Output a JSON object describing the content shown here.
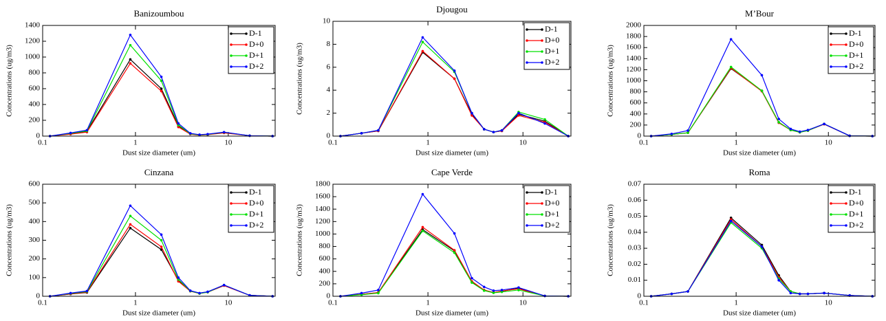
{
  "chart_data": [
    {
      "type": "line",
      "title": "Banizoumbou",
      "xlabel": "Dust size diameter (um)",
      "ylabel": "Concentrations (ug/m3)",
      "log_x": true,
      "legend": "upper-right",
      "x": [
        0.12,
        0.2,
        0.3,
        0.88,
        1.9,
        2.9,
        3.9,
        4.9,
        6,
        9,
        17,
        30
      ],
      "xlim": [
        0.1,
        32
      ],
      "xticks": [
        0.1,
        1,
        10
      ],
      "ylim": [
        0,
        1400
      ],
      "yticks": [
        0,
        200,
        400,
        600,
        800,
        1000,
        1200,
        1400
      ],
      "series": [
        {
          "name": "D-1",
          "color": "#000000",
          "values": [
            0,
            30,
            60,
            970,
            600,
            130,
            30,
            15,
            20,
            45,
            5,
            0
          ]
        },
        {
          "name": "D+0",
          "color": "#ff0000",
          "values": [
            0,
            25,
            50,
            920,
            570,
            115,
            25,
            12,
            18,
            40,
            5,
            0
          ]
        },
        {
          "name": "D+1",
          "color": "#00e000",
          "values": [
            0,
            35,
            65,
            1150,
            700,
            140,
            30,
            15,
            22,
            48,
            5,
            0
          ]
        },
        {
          "name": "D+2",
          "color": "#0000ff",
          "values": [
            0,
            40,
            75,
            1280,
            750,
            160,
            35,
            18,
            25,
            50,
            5,
            0
          ]
        }
      ]
    },
    {
      "type": "line",
      "title": "Djougou",
      "xlabel": "Dust size diameter (um)",
      "ylabel": "Concentrations (ug/m3)",
      "log_x": true,
      "legend": "upper-right",
      "x": [
        0.12,
        0.2,
        0.3,
        0.88,
        1.9,
        2.9,
        3.9,
        4.9,
        6,
        9,
        17,
        30
      ],
      "xlim": [
        0.1,
        32
      ],
      "xticks": [
        0.1,
        1,
        10
      ],
      "ylim": [
        0,
        10
      ],
      "yticks": [
        0,
        2,
        4,
        6,
        8,
        10
      ],
      "series": [
        {
          "name": "D-1",
          "color": "#000000",
          "values": [
            0,
            0.25,
            0.45,
            7.3,
            5.0,
            1.9,
            0.6,
            0.35,
            0.45,
            1.9,
            1.3,
            0
          ]
        },
        {
          "name": "D+0",
          "color": "#ff0000",
          "values": [
            0,
            0.25,
            0.45,
            7.4,
            5.0,
            1.8,
            0.6,
            0.35,
            0.45,
            1.8,
            1.2,
            0
          ]
        },
        {
          "name": "D+1",
          "color": "#00e000",
          "values": [
            0,
            0.25,
            0.5,
            8.2,
            5.6,
            2.0,
            0.6,
            0.35,
            0.5,
            2.1,
            1.45,
            0
          ]
        },
        {
          "name": "D+2",
          "color": "#0000ff",
          "values": [
            0,
            0.25,
            0.5,
            8.6,
            5.7,
            2.0,
            0.6,
            0.35,
            0.5,
            2.0,
            1.1,
            0
          ]
        }
      ]
    },
    {
      "type": "line",
      "title": "M’Bour",
      "xlabel": "Dust size diameter (um)",
      "ylabel": "Concentrations (ug/m3)",
      "log_x": true,
      "legend": "upper-right",
      "x": [
        0.12,
        0.2,
        0.3,
        0.88,
        1.9,
        2.9,
        3.9,
        4.9,
        6,
        9,
        17,
        30
      ],
      "xlim": [
        0.1,
        32
      ],
      "xticks": [
        0.1,
        1,
        10
      ],
      "ylim": [
        0,
        2000
      ],
      "yticks": [
        0,
        200,
        400,
        600,
        800,
        1000,
        1200,
        1400,
        1600,
        1800,
        2000
      ],
      "series": [
        {
          "name": "D-1",
          "color": "#000000",
          "values": [
            0,
            30,
            60,
            1220,
            820,
            250,
            110,
            70,
            100,
            220,
            5,
            0
          ]
        },
        {
          "name": "D+0",
          "color": "#ff0000",
          "values": [
            0,
            30,
            60,
            1230,
            810,
            240,
            110,
            70,
            100,
            215,
            5,
            0
          ]
        },
        {
          "name": "D+1",
          "color": "#00e000",
          "values": [
            0,
            30,
            60,
            1250,
            820,
            250,
            110,
            70,
            100,
            220,
            5,
            0
          ]
        },
        {
          "name": "D+2",
          "color": "#0000ff",
          "values": [
            0,
            40,
            100,
            1750,
            1100,
            310,
            130,
            80,
            110,
            220,
            5,
            0
          ]
        }
      ]
    },
    {
      "type": "line",
      "title": "Cinzana",
      "xlabel": "Dust size diameter (um)",
      "ylabel": "Concentrations (ug/m3)",
      "log_x": true,
      "legend": "upper-right",
      "x": [
        0.12,
        0.2,
        0.3,
        0.88,
        1.9,
        2.9,
        3.9,
        4.9,
        6,
        9,
        17,
        30
      ],
      "xlim": [
        0.1,
        32
      ],
      "xticks": [
        0.1,
        1,
        10
      ],
      "ylim": [
        0,
        600
      ],
      "yticks": [
        0,
        100,
        200,
        300,
        400,
        500,
        600
      ],
      "series": [
        {
          "name": "D-1",
          "color": "#000000",
          "values": [
            0,
            12,
            20,
            365,
            250,
            85,
            28,
            15,
            22,
            58,
            5,
            0
          ]
        },
        {
          "name": "D+0",
          "color": "#ff0000",
          "values": [
            0,
            13,
            22,
            385,
            265,
            80,
            27,
            15,
            22,
            57,
            5,
            0
          ]
        },
        {
          "name": "D+1",
          "color": "#00e000",
          "values": [
            0,
            15,
            25,
            430,
            300,
            90,
            28,
            15,
            22,
            60,
            5,
            0
          ]
        },
        {
          "name": "D+2",
          "color": "#0000ff",
          "values": [
            0,
            17,
            28,
            485,
            330,
            100,
            30,
            17,
            24,
            60,
            5,
            0
          ]
        }
      ]
    },
    {
      "type": "line",
      "title": "Cape Verde",
      "xlabel": "Dust size diameter (um)",
      "ylabel": "Concentrations (ug/m3)",
      "log_x": true,
      "legend": "upper-right",
      "x": [
        0.12,
        0.2,
        0.3,
        0.88,
        1.9,
        2.9,
        3.9,
        4.9,
        6,
        9,
        17,
        30
      ],
      "xlim": [
        0.1,
        32
      ],
      "xticks": [
        0.1,
        1,
        10
      ],
      "ylim": [
        0,
        1800
      ],
      "yticks": [
        0,
        200,
        400,
        600,
        800,
        1000,
        1200,
        1400,
        1600,
        1800
      ],
      "series": [
        {
          "name": "D-1",
          "color": "#000000",
          "values": [
            0,
            30,
            60,
            1070,
            730,
            230,
            100,
            60,
            80,
            130,
            5,
            0
          ]
        },
        {
          "name": "D+0",
          "color": "#ff0000",
          "values": [
            0,
            30,
            60,
            1110,
            740,
            240,
            100,
            60,
            85,
            120,
            5,
            0
          ]
        },
        {
          "name": "D+1",
          "color": "#00e000",
          "values": [
            0,
            25,
            50,
            1050,
            700,
            220,
            90,
            55,
            70,
            100,
            5,
            0
          ]
        },
        {
          "name": "D+2",
          "color": "#0000ff",
          "values": [
            0,
            50,
            100,
            1640,
            1010,
            290,
            150,
            90,
            100,
            140,
            5,
            0
          ]
        }
      ]
    },
    {
      "type": "line",
      "title": "Roma",
      "xlabel": "Dust size diameter (um)",
      "ylabel": "Concentrations (ug/m3)",
      "log_x": true,
      "legend": "upper-right",
      "x": [
        0.12,
        0.2,
        0.3,
        0.88,
        1.9,
        2.9,
        3.9,
        4.9,
        6,
        9,
        17,
        30
      ],
      "xlim": [
        0.1,
        32
      ],
      "xticks": [
        0.1,
        1,
        10
      ],
      "ylim": [
        0,
        0.07
      ],
      "yticks": [
        0,
        0.01,
        0.02,
        0.03,
        0.04,
        0.05,
        0.06,
        0.07
      ],
      "series": [
        {
          "name": "D-1",
          "color": "#000000",
          "values": [
            0,
            0.0015,
            0.003,
            0.049,
            0.032,
            0.013,
            0.003,
            0.0015,
            0.0015,
            0.002,
            0.0005,
            0
          ]
        },
        {
          "name": "D+0",
          "color": "#ff0000",
          "values": [
            0,
            0.0015,
            0.003,
            0.048,
            0.031,
            0.012,
            0.003,
            0.0015,
            0.0015,
            0.002,
            0.0005,
            0
          ]
        },
        {
          "name": "D+1",
          "color": "#00e000",
          "values": [
            0,
            0.0015,
            0.003,
            0.046,
            0.03,
            0.011,
            0.003,
            0.0015,
            0.0015,
            0.002,
            0.0005,
            0
          ]
        },
        {
          "name": "D+2",
          "color": "#0000ff",
          "values": [
            0,
            0.0015,
            0.003,
            0.047,
            0.031,
            0.01,
            0.002,
            0.0015,
            0.0015,
            0.002,
            0.0005,
            0
          ]
        }
      ]
    }
  ]
}
